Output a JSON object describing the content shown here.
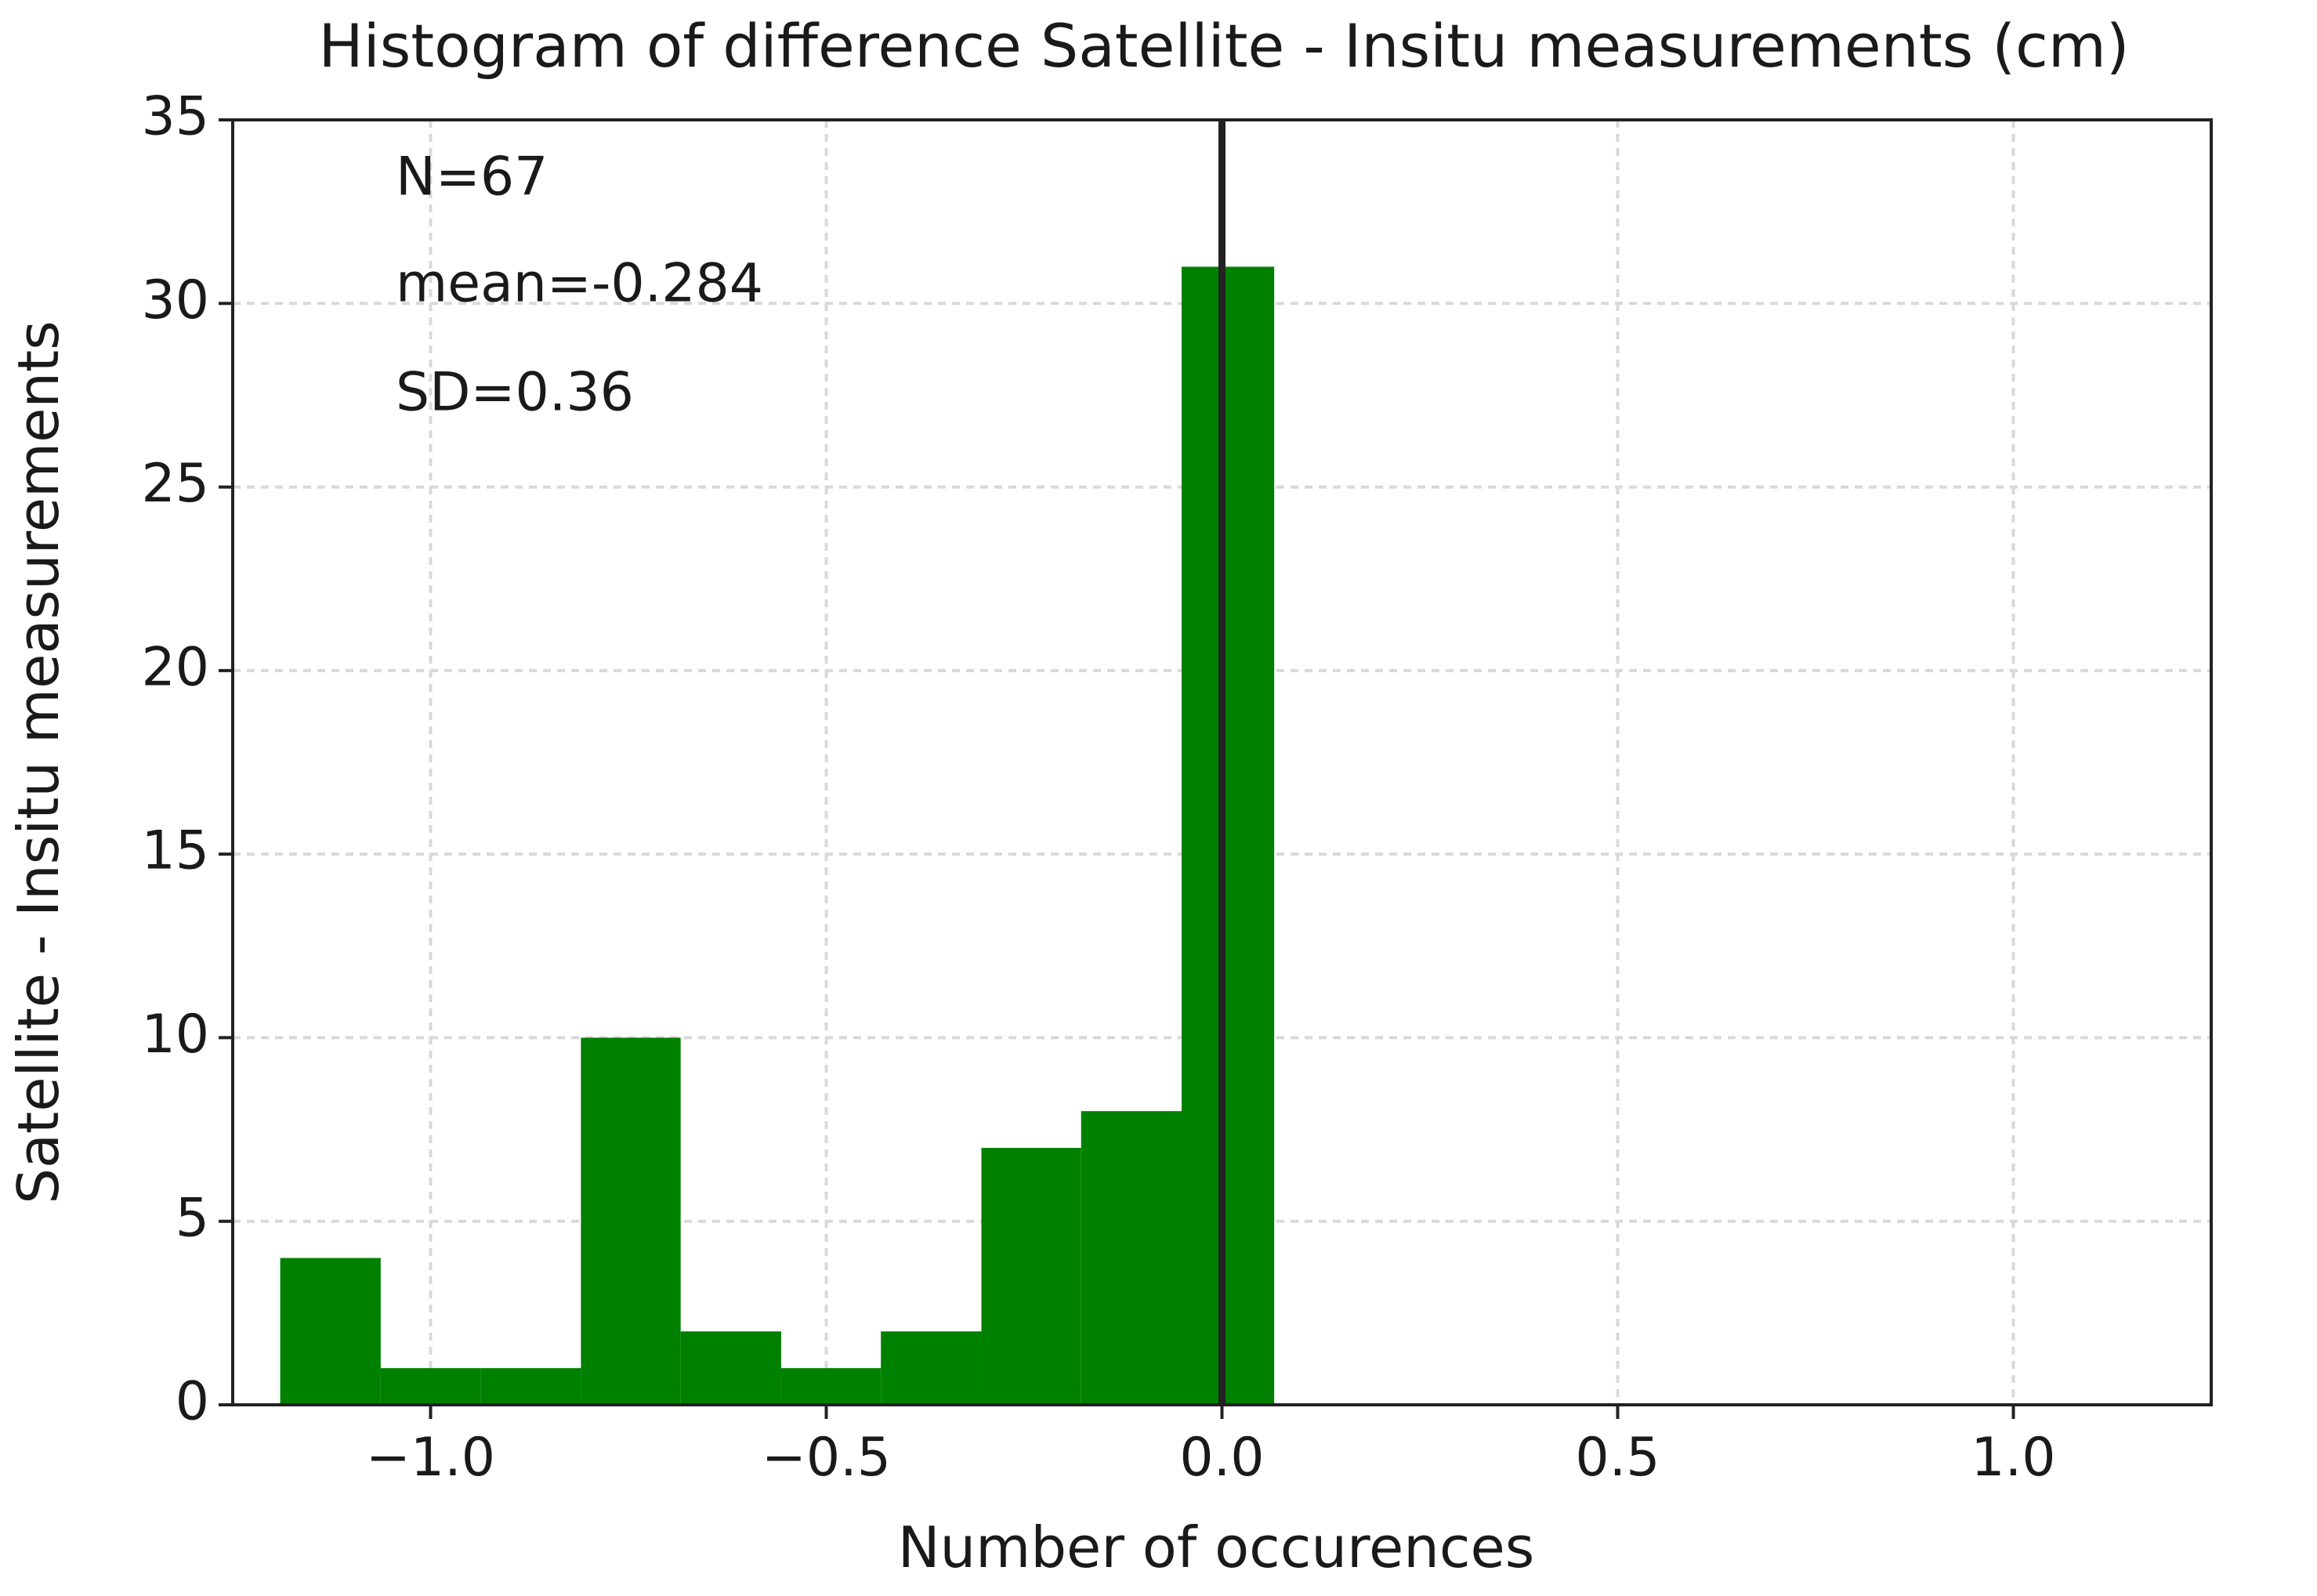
{
  "chart_data": {
    "type": "bar",
    "title": "Histogram of difference Satellite - Insitu measurements (cm)",
    "xlabel": "Number of occurences",
    "ylabel": "Satellite - Insitu measurements",
    "xlim": [
      -1.25,
      1.25
    ],
    "ylim": [
      0,
      35
    ],
    "x_ticks": [
      -1.0,
      -0.5,
      0.0,
      0.5,
      1.0
    ],
    "x_tick_labels": [
      "−1.0",
      "−0.5",
      "0.0",
      "0.5",
      "1.0"
    ],
    "y_ticks": [
      0,
      5,
      10,
      15,
      20,
      25,
      30,
      35
    ],
    "y_tick_labels": [
      "0",
      "5",
      "10",
      "15",
      "20",
      "25",
      "30",
      "35"
    ],
    "grid": true,
    "bar_color": "#008000",
    "bins": [
      {
        "x0": -1.19,
        "x1": -1.063,
        "count": 4
      },
      {
        "x0": -1.063,
        "x1": -0.937,
        "count": 1
      },
      {
        "x0": -0.937,
        "x1": -0.81,
        "count": 1
      },
      {
        "x0": -0.81,
        "x1": -0.684,
        "count": 10
      },
      {
        "x0": -0.684,
        "x1": -0.557,
        "count": 2
      },
      {
        "x0": -0.557,
        "x1": -0.431,
        "count": 1
      },
      {
        "x0": -0.431,
        "x1": -0.304,
        "count": 2
      },
      {
        "x0": -0.304,
        "x1": -0.178,
        "count": 7
      },
      {
        "x0": -0.178,
        "x1": -0.051,
        "count": 8
      },
      {
        "x0": -0.051,
        "x1": 0.066,
        "count": 31
      }
    ],
    "reference_line": {
      "x": 0.0,
      "color": "#222222"
    },
    "annotations": [
      "N=67",
      "mean=-0.284",
      "SD=0.36"
    ]
  }
}
